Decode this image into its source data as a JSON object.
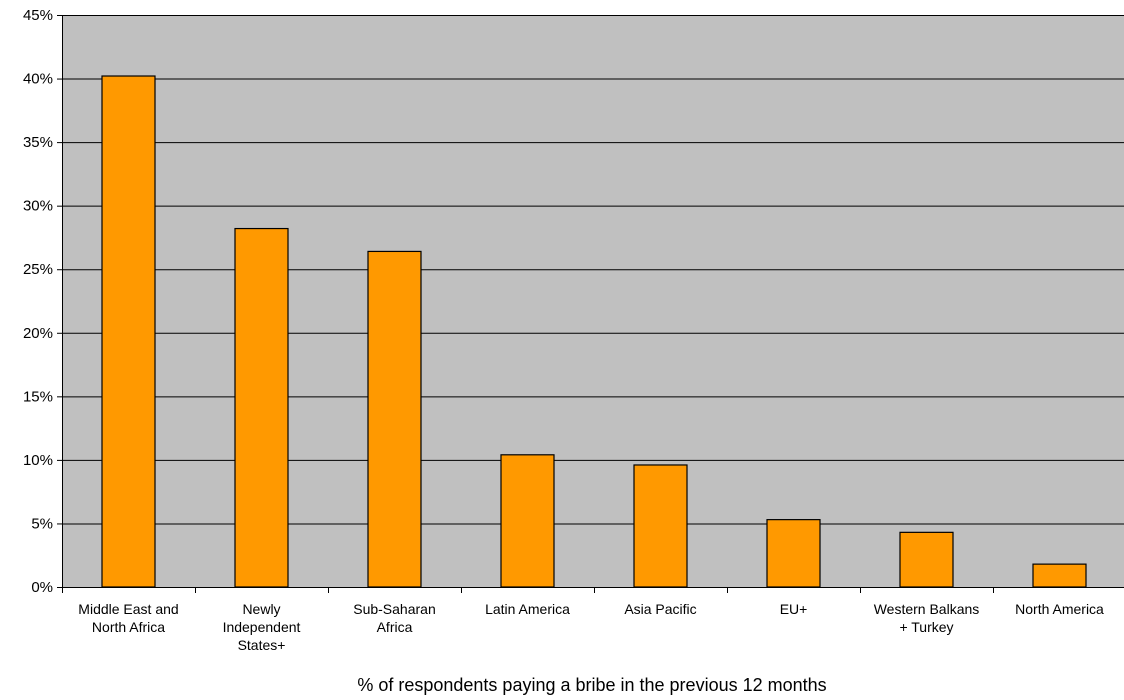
{
  "chart_data": {
    "type": "bar",
    "title": "",
    "xlabel": "% of respondents paying a bribe in the previous 12 months",
    "ylabel": "",
    "ylim": [
      0,
      45
    ],
    "y_ticks": [
      "0%",
      "5%",
      "10%",
      "15%",
      "20%",
      "25%",
      "30%",
      "35%",
      "40%",
      "45%"
    ],
    "y_tick_values": [
      0,
      5,
      10,
      15,
      20,
      25,
      30,
      35,
      40,
      45
    ],
    "y_unit": "%",
    "grid": true,
    "legend": "none",
    "categories": [
      [
        "Middle East and",
        "North Africa"
      ],
      [
        "Newly",
        "Independent",
        "States+"
      ],
      [
        "Sub-Saharan",
        "Africa"
      ],
      [
        "Latin America"
      ],
      [
        "Asia Pacific"
      ],
      [
        "EU+"
      ],
      [
        "Western Balkans",
        "+ Turkey"
      ],
      [
        "North America"
      ]
    ],
    "category_names": [
      "Middle East and North Africa",
      "Newly Independent States+",
      "Sub-Saharan Africa",
      "Latin America",
      "Asia Pacific",
      "EU+",
      "Western Balkans + Turkey",
      "North America"
    ],
    "values": [
      40.2,
      28.2,
      26.4,
      10.4,
      9.6,
      5.3,
      4.3,
      1.8
    ]
  },
  "colors": {
    "bar_fill": "#FF9900",
    "bar_stroke": "#000000",
    "plot_background": "#C0C0C0",
    "gridline": "#000000",
    "axis": "#000000",
    "page_background": "#FFFFFF"
  }
}
